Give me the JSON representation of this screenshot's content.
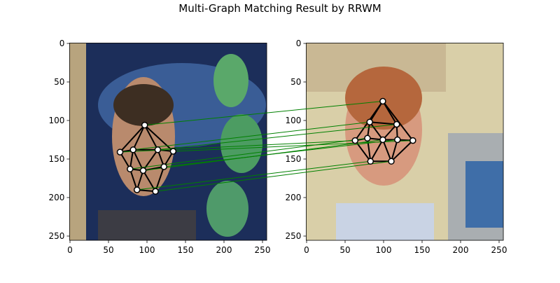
{
  "title": "Multi-Graph Matching Result by RRWM",
  "chart_data": [
    {
      "type": "image-graph",
      "xlim": [
        -0.5,
        255.5
      ],
      "ylim": [
        255.5,
        -0.5
      ],
      "xticks": [
        0,
        50,
        100,
        150,
        200,
        250
      ],
      "yticks": [
        0,
        50,
        100,
        150,
        200,
        250
      ],
      "points": {
        "x": [
          97,
          65,
          82,
          114,
          134,
          78,
          95,
          122,
          87,
          111
        ],
        "y": [
          106,
          141,
          138,
          138,
          140,
          163,
          165,
          160,
          190,
          192
        ]
      },
      "edges": [
        [
          0,
          1
        ],
        [
          0,
          2
        ],
        [
          0,
          3
        ],
        [
          0,
          4
        ],
        [
          1,
          2
        ],
        [
          2,
          3
        ],
        [
          3,
          4
        ],
        [
          1,
          5
        ],
        [
          2,
          5
        ],
        [
          2,
          6
        ],
        [
          3,
          6
        ],
        [
          3,
          7
        ],
        [
          4,
          7
        ],
        [
          5,
          6
        ],
        [
          6,
          7
        ],
        [
          5,
          8
        ],
        [
          6,
          8
        ],
        [
          6,
          9
        ],
        [
          7,
          9
        ],
        [
          8,
          9
        ]
      ]
    },
    {
      "type": "image-graph",
      "xlim": [
        -0.5,
        255.5
      ],
      "ylim": [
        255.5,
        -0.5
      ],
      "xticks": [
        0,
        50,
        100,
        150,
        200,
        250
      ],
      "yticks": [
        0,
        50,
        100,
        150,
        200,
        250
      ],
      "points": {
        "x": [
          99,
          82,
          117,
          63,
          79,
          138,
          118,
          99,
          83,
          110
        ],
        "y": [
          75,
          102,
          105,
          126,
          123,
          126,
          125,
          125,
          153,
          153
        ]
      },
      "edges": [
        [
          0,
          1
        ],
        [
          0,
          2
        ],
        [
          0,
          3
        ],
        [
          0,
          5
        ],
        [
          1,
          2
        ],
        [
          1,
          4
        ],
        [
          1,
          7
        ],
        [
          2,
          6
        ],
        [
          2,
          7
        ],
        [
          3,
          4
        ],
        [
          4,
          7
        ],
        [
          7,
          6
        ],
        [
          6,
          5
        ],
        [
          3,
          8
        ],
        [
          4,
          8
        ],
        [
          7,
          8
        ],
        [
          7,
          9
        ],
        [
          6,
          9
        ],
        [
          5,
          9
        ],
        [
          8,
          9
        ]
      ]
    }
  ],
  "matches": [
    [
      0,
      0
    ],
    [
      1,
      3
    ],
    [
      2,
      1
    ],
    [
      3,
      2
    ],
    [
      4,
      5
    ],
    [
      5,
      4
    ],
    [
      6,
      7
    ],
    [
      7,
      6
    ],
    [
      8,
      8
    ],
    [
      9,
      9
    ]
  ]
}
